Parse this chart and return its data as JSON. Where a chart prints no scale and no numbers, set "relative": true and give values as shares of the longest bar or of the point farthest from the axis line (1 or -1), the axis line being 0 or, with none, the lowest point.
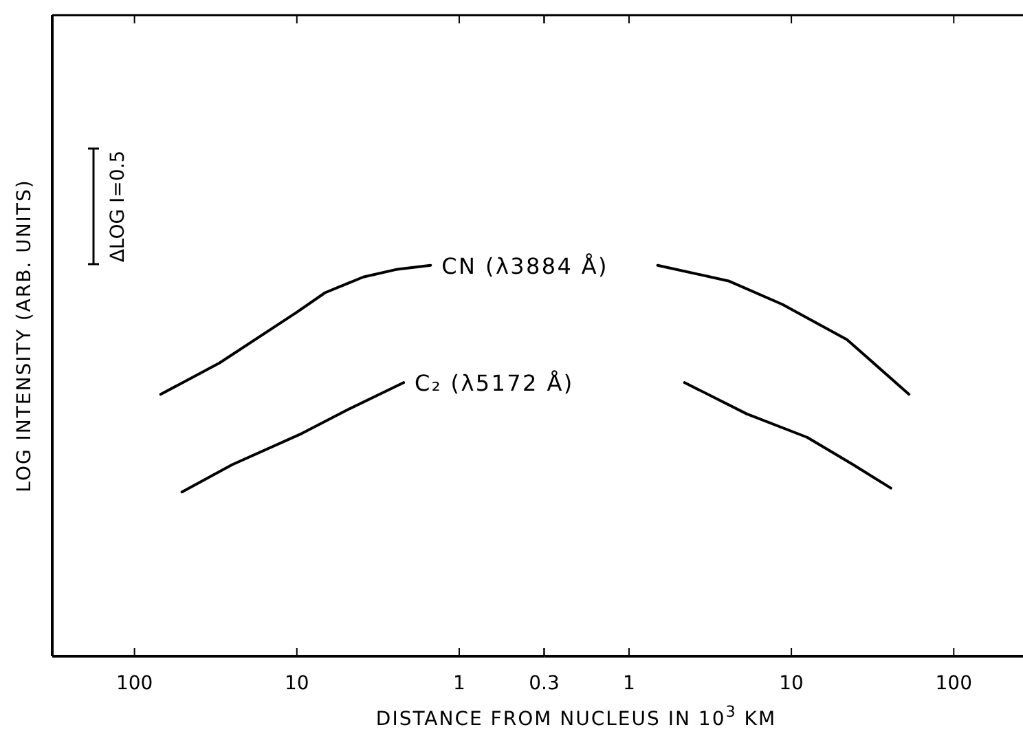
{
  "chart_data": [
    {
      "type": "line",
      "relative": true,
      "log": "x",
      "xlabel": "DISTANCE FROM NUCLEUS IN 10$^{3}$ KM",
      "ylabel": "LOG INTENSITY (ARB. UNITS)",
      "xlim": [
        321,
        0.3
      ],
      "xticks": [
        100,
        10,
        1,
        0.3
      ],
      "series": [
        {
          "name": "CN (λ3884 Å)",
          "color": "#000000",
          "x": [
            69,
            30,
            10,
            6.7,
            3.9,
            2.4,
            1.5
          ],
          "values": [
            0.67,
            0.75,
            0.88,
            0.93,
            0.97,
            0.99,
            1
          ]
        },
        {
          "name": "C₂ (λ5172 Å)",
          "color": "#000000",
          "x": [
            51,
            25,
            9.3,
            4.9,
            2.2
          ],
          "values": [
            0.42,
            0.49,
            0.57,
            0.63,
            0.7
          ]
        }
      ],
      "annotations": [
        "ΔLOG I=0.5"
      ],
      "marker": "none",
      "line_style": "solid"
    },
    {
      "type": "line",
      "relative": true,
      "log": "x",
      "xlim": [
        0.3,
        267
      ],
      "xticks": [
        {
          "value": 0.3,
          "label": null
        },
        1,
        10,
        100
      ],
      "series": [
        {
          "color": "#000000",
          "x": [
            1.5,
            4.1,
            8.8,
            22,
            53
          ],
          "values": [
            1,
            0.96,
            0.9,
            0.81,
            0.67
          ]
        },
        {
          "color": "#000000",
          "x": [
            2.2,
            5.3,
            12.5,
            24,
            41
          ],
          "values": [
            0.7,
            0.62,
            0.56,
            0.49,
            0.43
          ]
        }
      ],
      "marker": "none",
      "line_style": "solid"
    }
  ]
}
